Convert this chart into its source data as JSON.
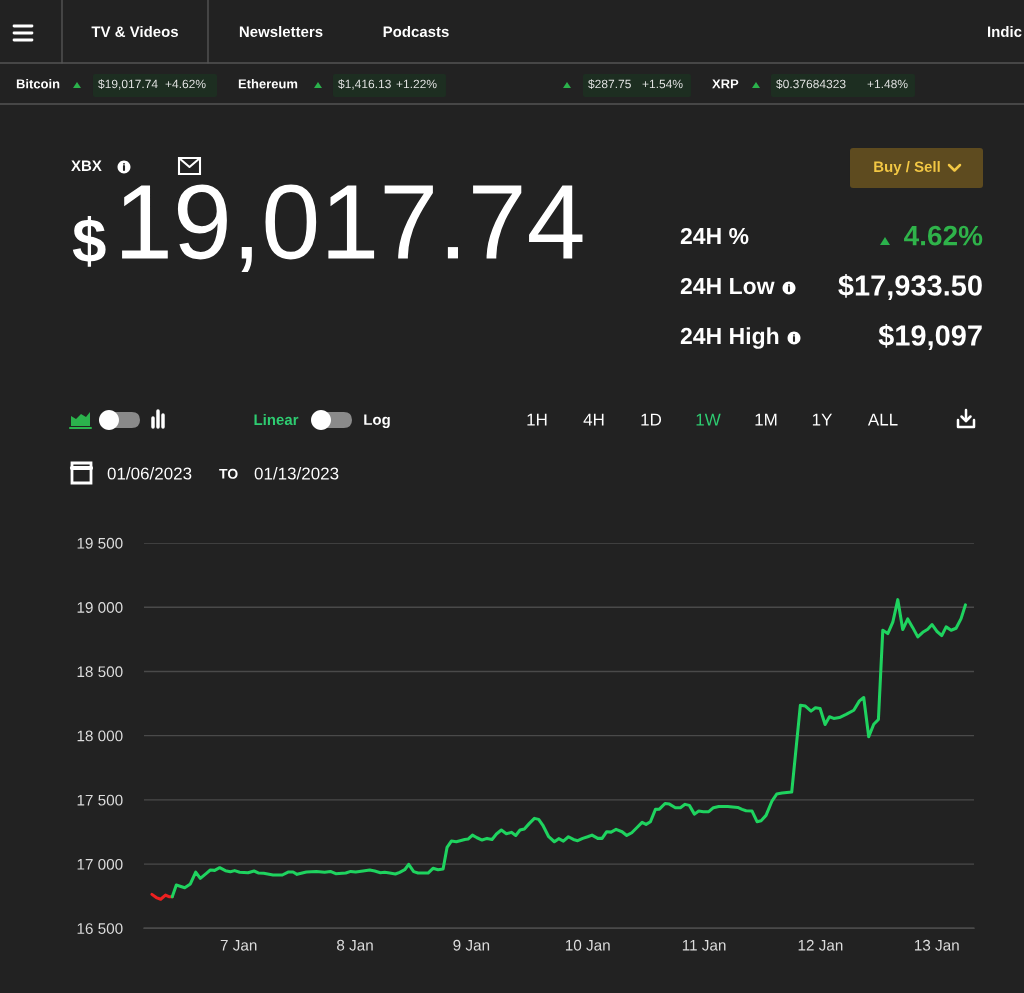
{
  "chart_data": {
    "type": "line",
    "annotations": [
      "TV & Videos",
      "Newsletters",
      "Podcasts",
      "Indic",
      "Bitcoin",
      "$19,017.74",
      "+4.62%",
      "Ethereum",
      "$1,416.13",
      "+1.22%",
      "$287.75",
      "+1.54%",
      "XRP",
      "$0.37684323",
      "+1.48%",
      "XBX",
      "$",
      "19,017.74",
      "Buy / Sell",
      "24H %",
      "4.62%",
      "24H Low",
      "$17,933.50",
      "24H High",
      "$19,097",
      "Linear",
      "Log",
      "1H",
      "4H",
      "1D",
      "1W",
      "1M",
      "1Y",
      "ALL",
      "01/06/2023",
      "TO",
      "01/13/2023"
    ],
    "series": [
      {
        "color": "#ee2020",
        "x": [
          "2023-01-06T06:06",
          "2023-01-06T07:00",
          "2023-01-06T07:54",
          "2023-01-06T08:54",
          "2023-01-06T09:36",
          "2023-01-06T10:18"
        ],
        "values": [
          16764,
          16739,
          16726,
          16759,
          16746,
          16746
        ]
      },
      {
        "color": "#1fd35f",
        "x": [
          "2023-01-06T10:18",
          "2023-01-06T11:08",
          "2023-01-06T12:52",
          "2023-01-06T14:02",
          "2023-01-06T15:08",
          "2023-01-06T16:05",
          "2023-01-06T17:20",
          "2023-01-06T18:09",
          "2023-01-06T19:03",
          "2023-01-06T20:05",
          "2023-01-06T21:15",
          "2023-01-06T22:17",
          "2023-01-06T23:10",
          "2023-01-07T00:12",
          "2023-01-07T01:56",
          "2023-01-07T03:10",
          "2023-01-07T04:08",
          "2023-01-07T05:10",
          "2023-01-07T07:05",
          "2023-01-07T09:00",
          "2023-01-07T10:11",
          "2023-01-07T11:13",
          "2023-01-07T12:02",
          "2023-01-07T13:58",
          "2023-01-07T16:01",
          "2023-01-07T17:44",
          "2023-01-07T18:55",
          "2023-01-07T20:01",
          "2023-01-07T22:05",
          "2023-01-07T23:07",
          "2023-01-08T00:08",
          "2023-01-08T01:39",
          "2023-01-08T03:02",
          "2023-01-08T04:04",
          "2023-01-08T05:14",
          "2023-01-08T06:07",
          "2023-01-08T07:09",
          "2023-01-08T08:19",
          "2023-01-08T09:13",
          "2023-01-08T10:15",
          "2023-01-08T11:04",
          "2023-01-08T12:06",
          "2023-01-08T13:00",
          "2023-01-08T15:04",
          "2023-01-08T16:05",
          "2023-01-08T17:07",
          "2023-01-08T18:10",
          "2023-01-08T18:59",
          "2023-01-08T19:52",
          "2023-01-08T20:54",
          "2023-01-08T22:38",
          "2023-01-08T23:19",
          "2023-01-09T00:13",
          "2023-01-09T01:10",
          "2023-01-09T02:12",
          "2023-01-09T03:14",
          "2023-01-09T04:16",
          "2023-01-09T05:10",
          "2023-01-09T06:11",
          "2023-01-09T07:13",
          "2023-01-09T08:15",
          "2023-01-09T09:09",
          "2023-01-09T10:02",
          "2023-01-09T10:56",
          "2023-01-09T11:58",
          "2023-01-09T13:00",
          "2023-01-09T13:53",
          "2023-01-09T14:43",
          "2023-01-09T15:57",
          "2023-01-09T17:07",
          "2023-01-09T18:01",
          "2023-01-09T18:59",
          "2023-01-09T20:01",
          "2023-01-09T21:02",
          "2023-01-09T21:56",
          "2023-01-09T22:58",
          "2023-01-10T00:00",
          "2023-01-10T00:53",
          "2023-01-10T02:04",
          "2023-01-10T02:58",
          "2023-01-10T03:55",
          "2023-01-10T04:49",
          "2023-01-10T05:51",
          "2023-01-10T07:05",
          "2023-01-10T08:03",
          "2023-01-10T09:05",
          "2023-01-10T10:07",
          "2023-01-10T11:13",
          "2023-01-10T12:02",
          "2023-01-10T12:56",
          "2023-01-10T13:58",
          "2023-01-10T14:47",
          "2023-01-10T15:57",
          "2023-01-10T16:51",
          "2023-01-10T18:05",
          "2023-01-10T19:07",
          "2023-01-10T20:05",
          "2023-01-10T20:58",
          "2023-01-10T22:01",
          "2023-01-10T22:54",
          "2023-01-10T23:52",
          "2023-01-11T00:58",
          "2023-01-11T01:56",
          "2023-01-11T03:02",
          "2023-01-11T04:53",
          "2023-01-11T06:57",
          "2023-01-11T07:50",
          "2023-01-11T08:40",
          "2023-01-11T09:54",
          "2023-01-11T10:56",
          "2023-01-11T11:46",
          "2023-01-11T12:47",
          "2023-01-11T14:02",
          "2023-01-11T14:59",
          "2023-01-11T16:05",
          "2023-01-11T18:05",
          "2023-01-11T19:52",
          "2023-01-11T20:54",
          "2023-01-11T22:04",
          "2023-01-11T22:58",
          "2023-01-11T23:56",
          "2023-01-12T00:58",
          "2023-01-12T01:52",
          "2023-01-12T02:45",
          "2023-01-12T03:55",
          "2023-01-12T05:18",
          "2023-01-12T06:53",
          "2023-01-12T08:03",
          "2023-01-12T08:56",
          "2023-01-12T09:58",
          "2023-01-12T11:00",
          "2023-01-12T11:58",
          "2023-01-12T12:52",
          "2023-01-12T13:54",
          "2023-01-12T14:56",
          "2023-01-12T15:58",
          "2023-01-12T16:59",
          "2023-01-12T18:01",
          "2023-01-12T19:03",
          "2023-01-12T20:05",
          "2023-01-12T21:07",
          "2023-01-12T22:08",
          "2023-01-12T23:02",
          "2023-01-13T00:00",
          "2023-01-13T01:02",
          "2023-01-13T01:56",
          "2023-01-13T02:58",
          "2023-01-13T03:59",
          "2023-01-13T05:01",
          "2023-01-13T05:55"
        ],
        "values": [
          16746,
          16837,
          16816,
          16845,
          16938,
          16889,
          16928,
          16954,
          16951,
          16972,
          16949,
          16941,
          16949,
          16936,
          16933,
          16946,
          16930,
          16928,
          16915,
          16915,
          16938,
          16938,
          16920,
          16938,
          16943,
          16936,
          16943,
          16925,
          16930,
          16943,
          16938,
          16946,
          16954,
          16946,
          16933,
          16936,
          16930,
          16923,
          16936,
          16956,
          16998,
          16941,
          16930,
          16930,
          16967,
          16956,
          16962,
          17130,
          17179,
          17174,
          17192,
          17195,
          17226,
          17205,
          17187,
          17200,
          17192,
          17234,
          17265,
          17236,
          17247,
          17223,
          17265,
          17273,
          17317,
          17356,
          17348,
          17304,
          17213,
          17174,
          17198,
          17179,
          17213,
          17192,
          17182,
          17200,
          17213,
          17226,
          17200,
          17200,
          17252,
          17249,
          17270,
          17252,
          17223,
          17244,
          17283,
          17325,
          17309,
          17330,
          17426,
          17428,
          17472,
          17467,
          17439,
          17439,
          17465,
          17457,
          17389,
          17413,
          17408,
          17408,
          17439,
          17449,
          17449,
          17441,
          17426,
          17415,
          17413,
          17330,
          17338,
          17379,
          17493,
          17545,
          17553,
          17561,
          18237,
          18230,
          18191,
          18217,
          18211,
          18087,
          18147,
          18134,
          18141,
          18165,
          18198,
          18271,
          18297,
          17991,
          18089,
          18126,
          18821,
          18795,
          18883,
          19059,
          18826,
          18909,
          18841,
          18769,
          18805,
          18829,
          18865,
          18813,
          18779,
          18847,
          18821,
          18836,
          18911,
          19018
        ]
      }
    ],
    "xlim": [
      "2023-01-06T04:28",
      "2023-01-13T07:41"
    ],
    "xticks": [
      {
        "value": "2023-01-07",
        "label": "7 Jan"
      },
      {
        "value": "2023-01-08",
        "label": "8 Jan"
      },
      {
        "value": "2023-01-09",
        "label": "9 Jan"
      },
      {
        "value": "2023-01-10",
        "label": "10 Jan"
      },
      {
        "value": "2023-01-11",
        "label": "11 Jan"
      },
      {
        "value": "2023-01-12",
        "label": "12 Jan"
      },
      {
        "value": "2023-01-13",
        "label": "13 Jan"
      }
    ],
    "ylim": [
      16500,
      19500
    ],
    "yticks": [
      {
        "value": 16500,
        "label": "16 500"
      },
      {
        "value": 17000,
        "label": "17 000"
      },
      {
        "value": 17500,
        "label": "17 500"
      },
      {
        "value": 18000,
        "label": "18 000"
      },
      {
        "value": 18500,
        "label": "18 500"
      },
      {
        "value": 19000,
        "label": "19 000"
      },
      {
        "value": 19500,
        "label": "19 500"
      }
    ],
    "grid": "y"
  }
}
